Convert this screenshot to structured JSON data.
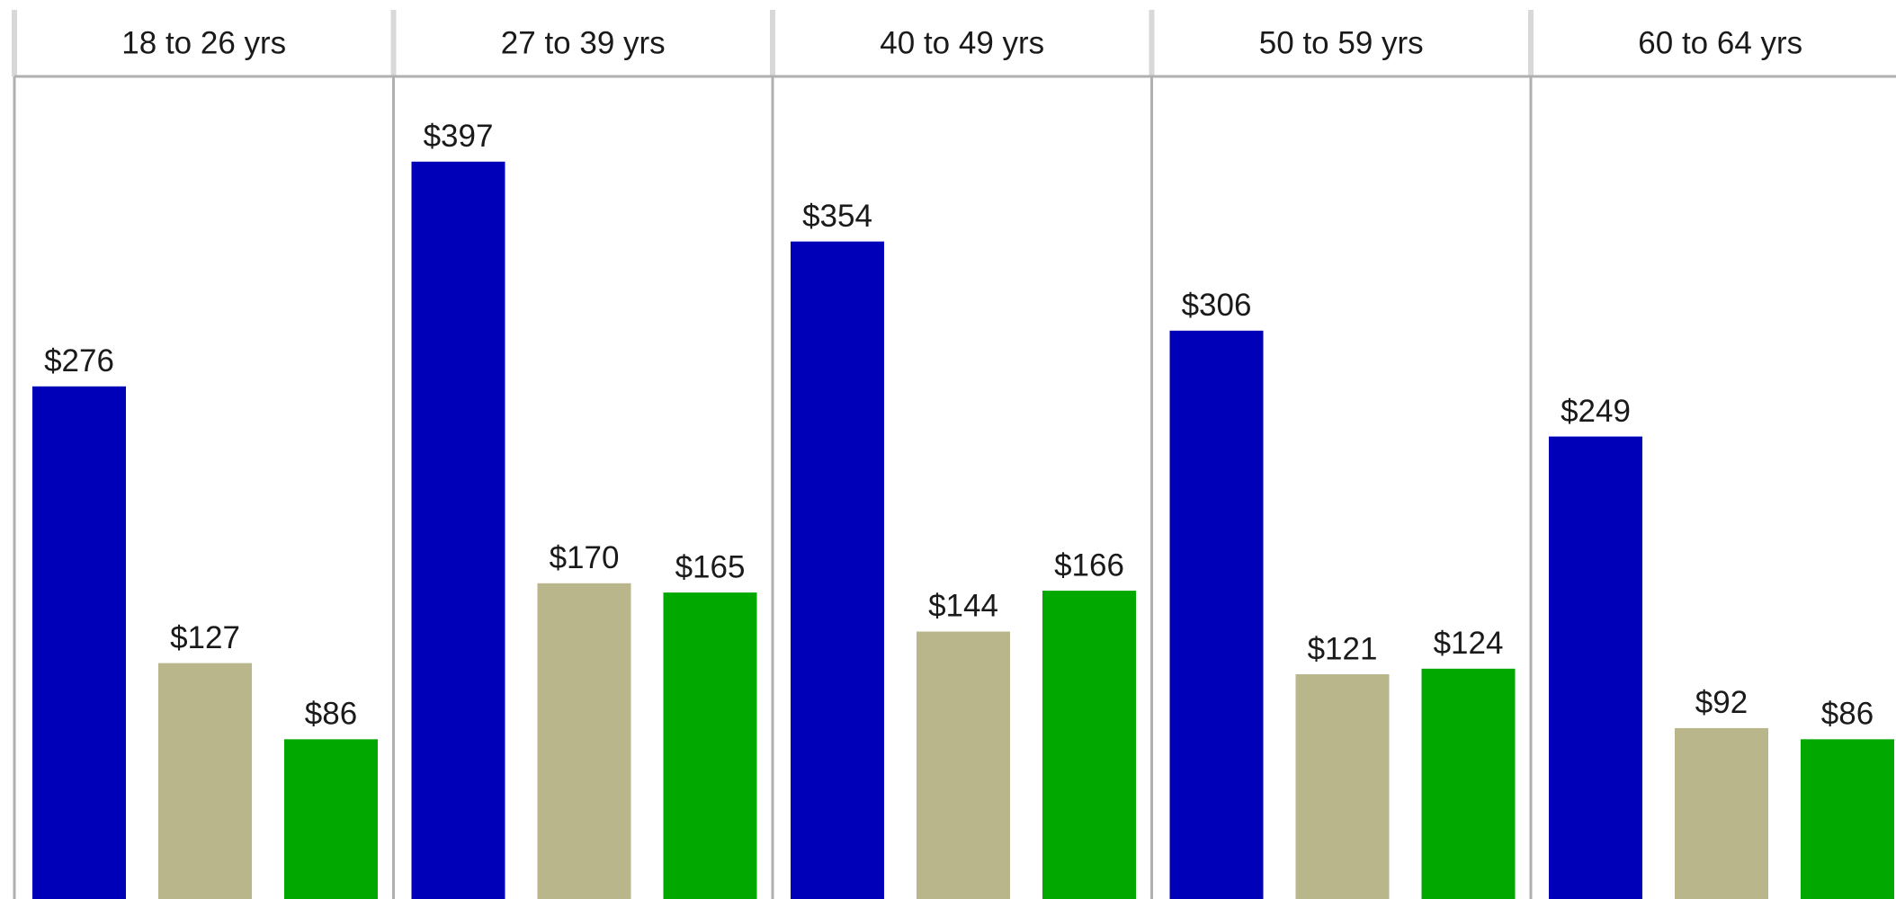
{
  "chart_data": {
    "type": "bar",
    "categories": [
      "18 to 26 yrs",
      "27 to 39 yrs",
      "40 to 49 yrs",
      "50 to 59 yrs",
      "60 to 64 yrs"
    ],
    "series": [
      {
        "color": "#0000b8",
        "values": [
          276,
          397,
          354,
          306,
          249
        ],
        "value_labels": [
          "$276",
          "$397",
          "$354",
          "$306",
          "$249"
        ]
      },
      {
        "color": "#b8b68a",
        "values": [
          127,
          170,
          144,
          121,
          92
        ],
        "value_labels": [
          "$127",
          "$170",
          "$144",
          "$121",
          "$92"
        ]
      },
      {
        "color": "#00a800",
        "values": [
          86,
          165,
          166,
          124,
          86
        ],
        "value_labels": [
          "$86",
          "$165",
          "$166",
          "$124",
          "$86"
        ]
      }
    ]
  }
}
